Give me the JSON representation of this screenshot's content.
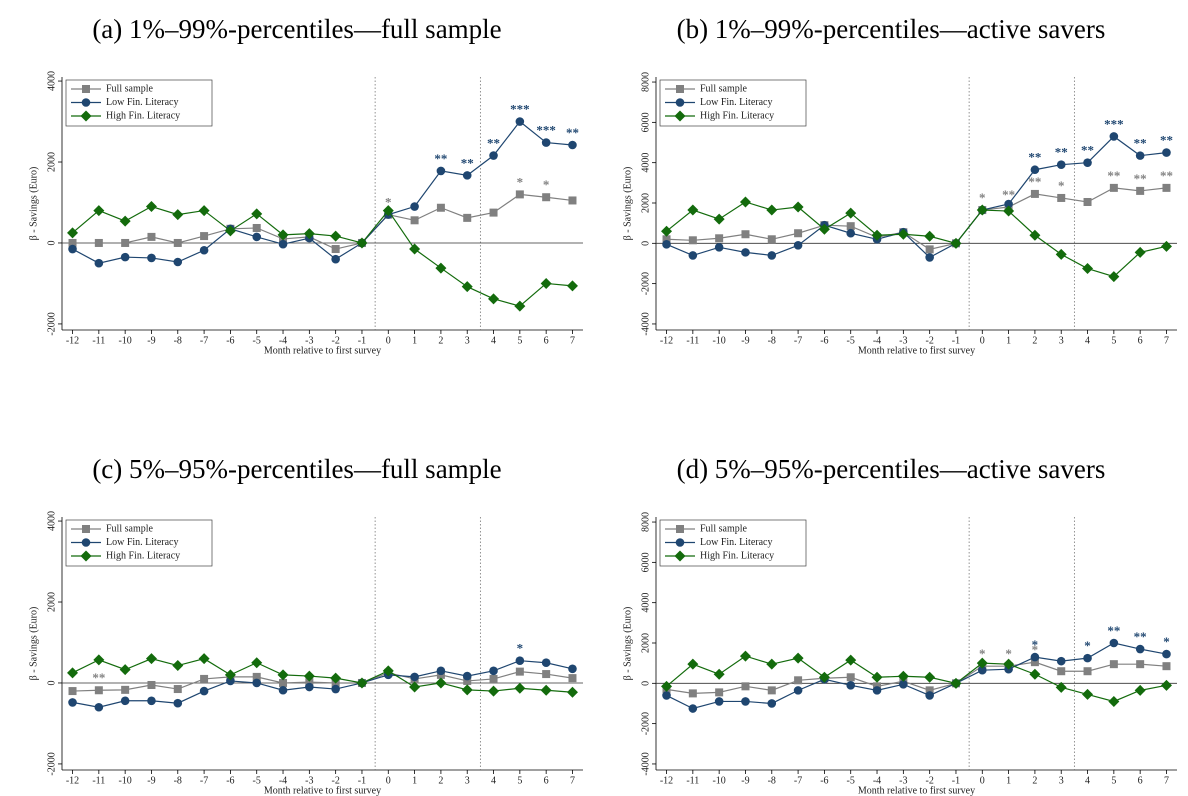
{
  "chart_data": [
    {
      "type": "line",
      "title": "(a) 1%–99%-percentiles—full sample",
      "xlabel": "Month relative to first survey",
      "ylabel": "β - Savings (Euro)",
      "x": [
        -12,
        -11,
        -10,
        -9,
        -8,
        -7,
        -6,
        -5,
        -4,
        -3,
        -2,
        -1,
        0,
        1,
        2,
        3,
        4,
        5,
        6,
        7
      ],
      "xticks": [
        -12,
        -11,
        -10,
        -9,
        -8,
        -7,
        -6,
        -5,
        -4,
        -3,
        -2,
        -1,
        0,
        1,
        2,
        3,
        4,
        5,
        6,
        7
      ],
      "xlim": [
        -12.4,
        7.4
      ],
      "ylim": [
        -2150,
        4100
      ],
      "yticks": [
        -2000,
        0,
        2000,
        4000
      ],
      "vlines": [
        -0.5,
        3.5
      ],
      "hline": 0,
      "legend": "top-left",
      "series": [
        {
          "name": "Full sample",
          "color": "#808080",
          "marker": "square",
          "values": [
            0,
            0,
            0,
            150,
            0,
            170,
            350,
            370,
            100,
            150,
            -150,
            0,
            700,
            560,
            870,
            620,
            750,
            1200,
            1130,
            1050
          ],
          "significance": [
            null,
            null,
            null,
            null,
            null,
            null,
            null,
            null,
            null,
            null,
            null,
            null,
            "*",
            null,
            null,
            null,
            null,
            "*",
            "*",
            null
          ]
        },
        {
          "name": "Low Fin. Literacy",
          "color": "#1f4670",
          "marker": "circle",
          "values": [
            -150,
            -500,
            -350,
            -370,
            -470,
            -180,
            350,
            150,
            -30,
            120,
            -400,
            0,
            700,
            900,
            1780,
            1670,
            2160,
            3000,
            2480,
            2420
          ],
          "significance": [
            null,
            null,
            null,
            null,
            null,
            null,
            null,
            null,
            null,
            null,
            null,
            null,
            null,
            null,
            "**",
            "**",
            "**",
            "***",
            "***",
            "**"
          ]
        },
        {
          "name": "High Fin. Literacy",
          "color": "#136b0c",
          "marker": "diamond",
          "values": [
            250,
            800,
            540,
            900,
            700,
            800,
            300,
            720,
            200,
            230,
            170,
            0,
            800,
            -150,
            -620,
            -1080,
            -1380,
            -1560,
            -1000,
            -1060
          ],
          "significance": [
            null,
            null,
            null,
            null,
            null,
            null,
            null,
            null,
            null,
            null,
            null,
            null,
            null,
            null,
            null,
            null,
            null,
            null,
            null,
            null
          ]
        }
      ]
    },
    {
      "type": "line",
      "title": "(b) 1%–99%-percentiles—active savers",
      "xlabel": "Month relative to first survey",
      "ylabel": "β - Savings (Euro)",
      "x": [
        -12,
        -11,
        -10,
        -9,
        -8,
        -7,
        -6,
        -5,
        -4,
        -3,
        -2,
        -1,
        0,
        1,
        2,
        3,
        4,
        5,
        6,
        7
      ],
      "xticks": [
        -12,
        -11,
        -10,
        -9,
        -8,
        -7,
        -6,
        -5,
        -4,
        -3,
        -2,
        -1,
        0,
        1,
        2,
        3,
        4,
        5,
        6,
        7
      ],
      "xlim": [
        -12.4,
        7.4
      ],
      "ylim": [
        -4300,
        8250
      ],
      "yticks": [
        -4000,
        -2000,
        0,
        2000,
        4000,
        6000,
        8000
      ],
      "vlines": [
        -0.5,
        3.5
      ],
      "hline": 0,
      "legend": "top-left",
      "series": [
        {
          "name": "Full sample",
          "color": "#808080",
          "marker": "square",
          "values": [
            200,
            150,
            250,
            450,
            200,
            500,
            900,
            850,
            300,
            550,
            -300,
            0,
            1650,
            1800,
            2450,
            2250,
            2050,
            2750,
            2600,
            2750
          ],
          "significance": [
            null,
            null,
            null,
            null,
            null,
            null,
            null,
            null,
            null,
            null,
            null,
            null,
            "*",
            "**",
            "**",
            "*",
            null,
            "**",
            "**",
            "**"
          ]
        },
        {
          "name": "Low Fin. Literacy",
          "color": "#1f4670",
          "marker": "circle",
          "values": [
            -50,
            -600,
            -200,
            -450,
            -600,
            -100,
            900,
            500,
            200,
            550,
            -700,
            0,
            1650,
            1950,
            3650,
            3900,
            4000,
            5300,
            4350,
            4500
          ],
          "significance": [
            null,
            null,
            null,
            null,
            null,
            null,
            null,
            null,
            null,
            null,
            null,
            null,
            null,
            null,
            "**",
            "**",
            "**",
            "***",
            "**",
            "**"
          ]
        },
        {
          "name": "High Fin. Literacy",
          "color": "#136b0c",
          "marker": "diamond",
          "values": [
            600,
            1650,
            1200,
            2050,
            1650,
            1800,
            700,
            1500,
            400,
            450,
            350,
            0,
            1650,
            1600,
            400,
            -550,
            -1250,
            -1650,
            -450,
            -150
          ],
          "significance": [
            null,
            null,
            null,
            null,
            null,
            null,
            null,
            null,
            null,
            null,
            null,
            null,
            null,
            null,
            null,
            null,
            null,
            null,
            null,
            null
          ]
        }
      ]
    },
    {
      "type": "line",
      "title": "(c) 5%–95%-percentiles—full sample",
      "xlabel": "Month relative to first survey",
      "ylabel": "β - Savings (Euro)",
      "x": [
        -12,
        -11,
        -10,
        -9,
        -8,
        -7,
        -6,
        -5,
        -4,
        -3,
        -2,
        -1,
        0,
        1,
        2,
        3,
        4,
        5,
        6,
        7
      ],
      "xticks": [
        -12,
        -11,
        -10,
        -9,
        -8,
        -7,
        -6,
        -5,
        -4,
        -3,
        -2,
        -1,
        0,
        1,
        2,
        3,
        4,
        5,
        6,
        7
      ],
      "xlim": [
        -12.4,
        7.4
      ],
      "ylim": [
        -2150,
        4100
      ],
      "yticks": [
        -2000,
        0,
        2000,
        4000
      ],
      "vlines": [
        -0.5,
        3.5
      ],
      "hline": 0,
      "legend": "top-left",
      "series": [
        {
          "name": "Full sample",
          "color": "#808080",
          "marker": "square",
          "values": [
            -200,
            -180,
            -170,
            -50,
            -150,
            100,
            150,
            150,
            0,
            20,
            0,
            0,
            250,
            100,
            200,
            50,
            100,
            280,
            220,
            120
          ],
          "significance": [
            null,
            "**",
            null,
            null,
            null,
            null,
            null,
            null,
            null,
            null,
            null,
            null,
            null,
            null,
            null,
            null,
            null,
            null,
            null,
            null
          ]
        },
        {
          "name": "Low Fin. Literacy",
          "color": "#1f4670",
          "marker": "circle",
          "values": [
            -480,
            -600,
            -440,
            -440,
            -500,
            -200,
            50,
            0,
            -180,
            -100,
            -150,
            0,
            200,
            150,
            300,
            170,
            300,
            550,
            500,
            350
          ],
          "significance": [
            null,
            null,
            null,
            null,
            null,
            null,
            null,
            null,
            null,
            null,
            null,
            null,
            null,
            null,
            null,
            null,
            null,
            "*",
            null,
            null
          ]
        },
        {
          "name": "High Fin. Literacy",
          "color": "#136b0c",
          "marker": "diamond",
          "values": [
            250,
            570,
            330,
            600,
            430,
            600,
            200,
            500,
            200,
            170,
            120,
            0,
            300,
            -100,
            0,
            -170,
            -200,
            -130,
            -180,
            -230
          ],
          "significance": [
            null,
            null,
            null,
            null,
            null,
            null,
            null,
            null,
            null,
            null,
            null,
            null,
            null,
            null,
            null,
            null,
            null,
            null,
            null,
            null
          ]
        }
      ]
    },
    {
      "type": "line",
      "title": "(d) 5%–95%-percentiles—active savers",
      "xlabel": "Month relative to first survey",
      "ylabel": "β - Savings (Euro)",
      "x": [
        -12,
        -11,
        -10,
        -9,
        -8,
        -7,
        -6,
        -5,
        -4,
        -3,
        -2,
        -1,
        0,
        1,
        2,
        3,
        4,
        5,
        6,
        7
      ],
      "xticks": [
        -12,
        -11,
        -10,
        -9,
        -8,
        -7,
        -6,
        -5,
        -4,
        -3,
        -2,
        -1,
        0,
        1,
        2,
        3,
        4,
        5,
        6,
        7
      ],
      "xlim": [
        -12.4,
        7.4
      ],
      "ylim": [
        -4300,
        8250
      ],
      "yticks": [
        -4000,
        -2000,
        0,
        2000,
        4000,
        6000,
        8000
      ],
      "vlines": [
        -0.5,
        3.5
      ],
      "hline": 0,
      "legend": "top-left",
      "series": [
        {
          "name": "Full sample",
          "color": "#808080",
          "marker": "square",
          "values": [
            -300,
            -500,
            -450,
            -150,
            -350,
            150,
            250,
            300,
            -150,
            100,
            -350,
            0,
            850,
            850,
            1050,
            600,
            600,
            950,
            950,
            850
          ],
          "significance": [
            null,
            null,
            null,
            null,
            null,
            null,
            null,
            null,
            null,
            null,
            null,
            null,
            "*",
            "*",
            "*",
            null,
            null,
            null,
            null,
            null
          ]
        },
        {
          "name": "Low Fin. Literacy",
          "color": "#1f4670",
          "marker": "circle",
          "values": [
            -600,
            -1250,
            -900,
            -900,
            -1000,
            -350,
            200,
            -100,
            -350,
            -50,
            -600,
            0,
            650,
            700,
            1300,
            1100,
            1250,
            2000,
            1700,
            1450
          ],
          "significance": [
            null,
            null,
            null,
            null,
            null,
            null,
            null,
            null,
            null,
            null,
            null,
            null,
            null,
            null,
            "*",
            null,
            "*",
            "**",
            "**",
            "*"
          ]
        },
        {
          "name": "High Fin. Literacy",
          "color": "#136b0c",
          "marker": "diamond",
          "values": [
            -150,
            950,
            450,
            1350,
            950,
            1250,
            300,
            1150,
            300,
            350,
            300,
            0,
            1000,
            950,
            450,
            -200,
            -550,
            -900,
            -350,
            -100
          ],
          "significance": [
            null,
            null,
            null,
            null,
            null,
            null,
            null,
            null,
            null,
            null,
            null,
            null,
            null,
            null,
            null,
            null,
            null,
            null,
            null,
            null
          ]
        }
      ]
    }
  ]
}
